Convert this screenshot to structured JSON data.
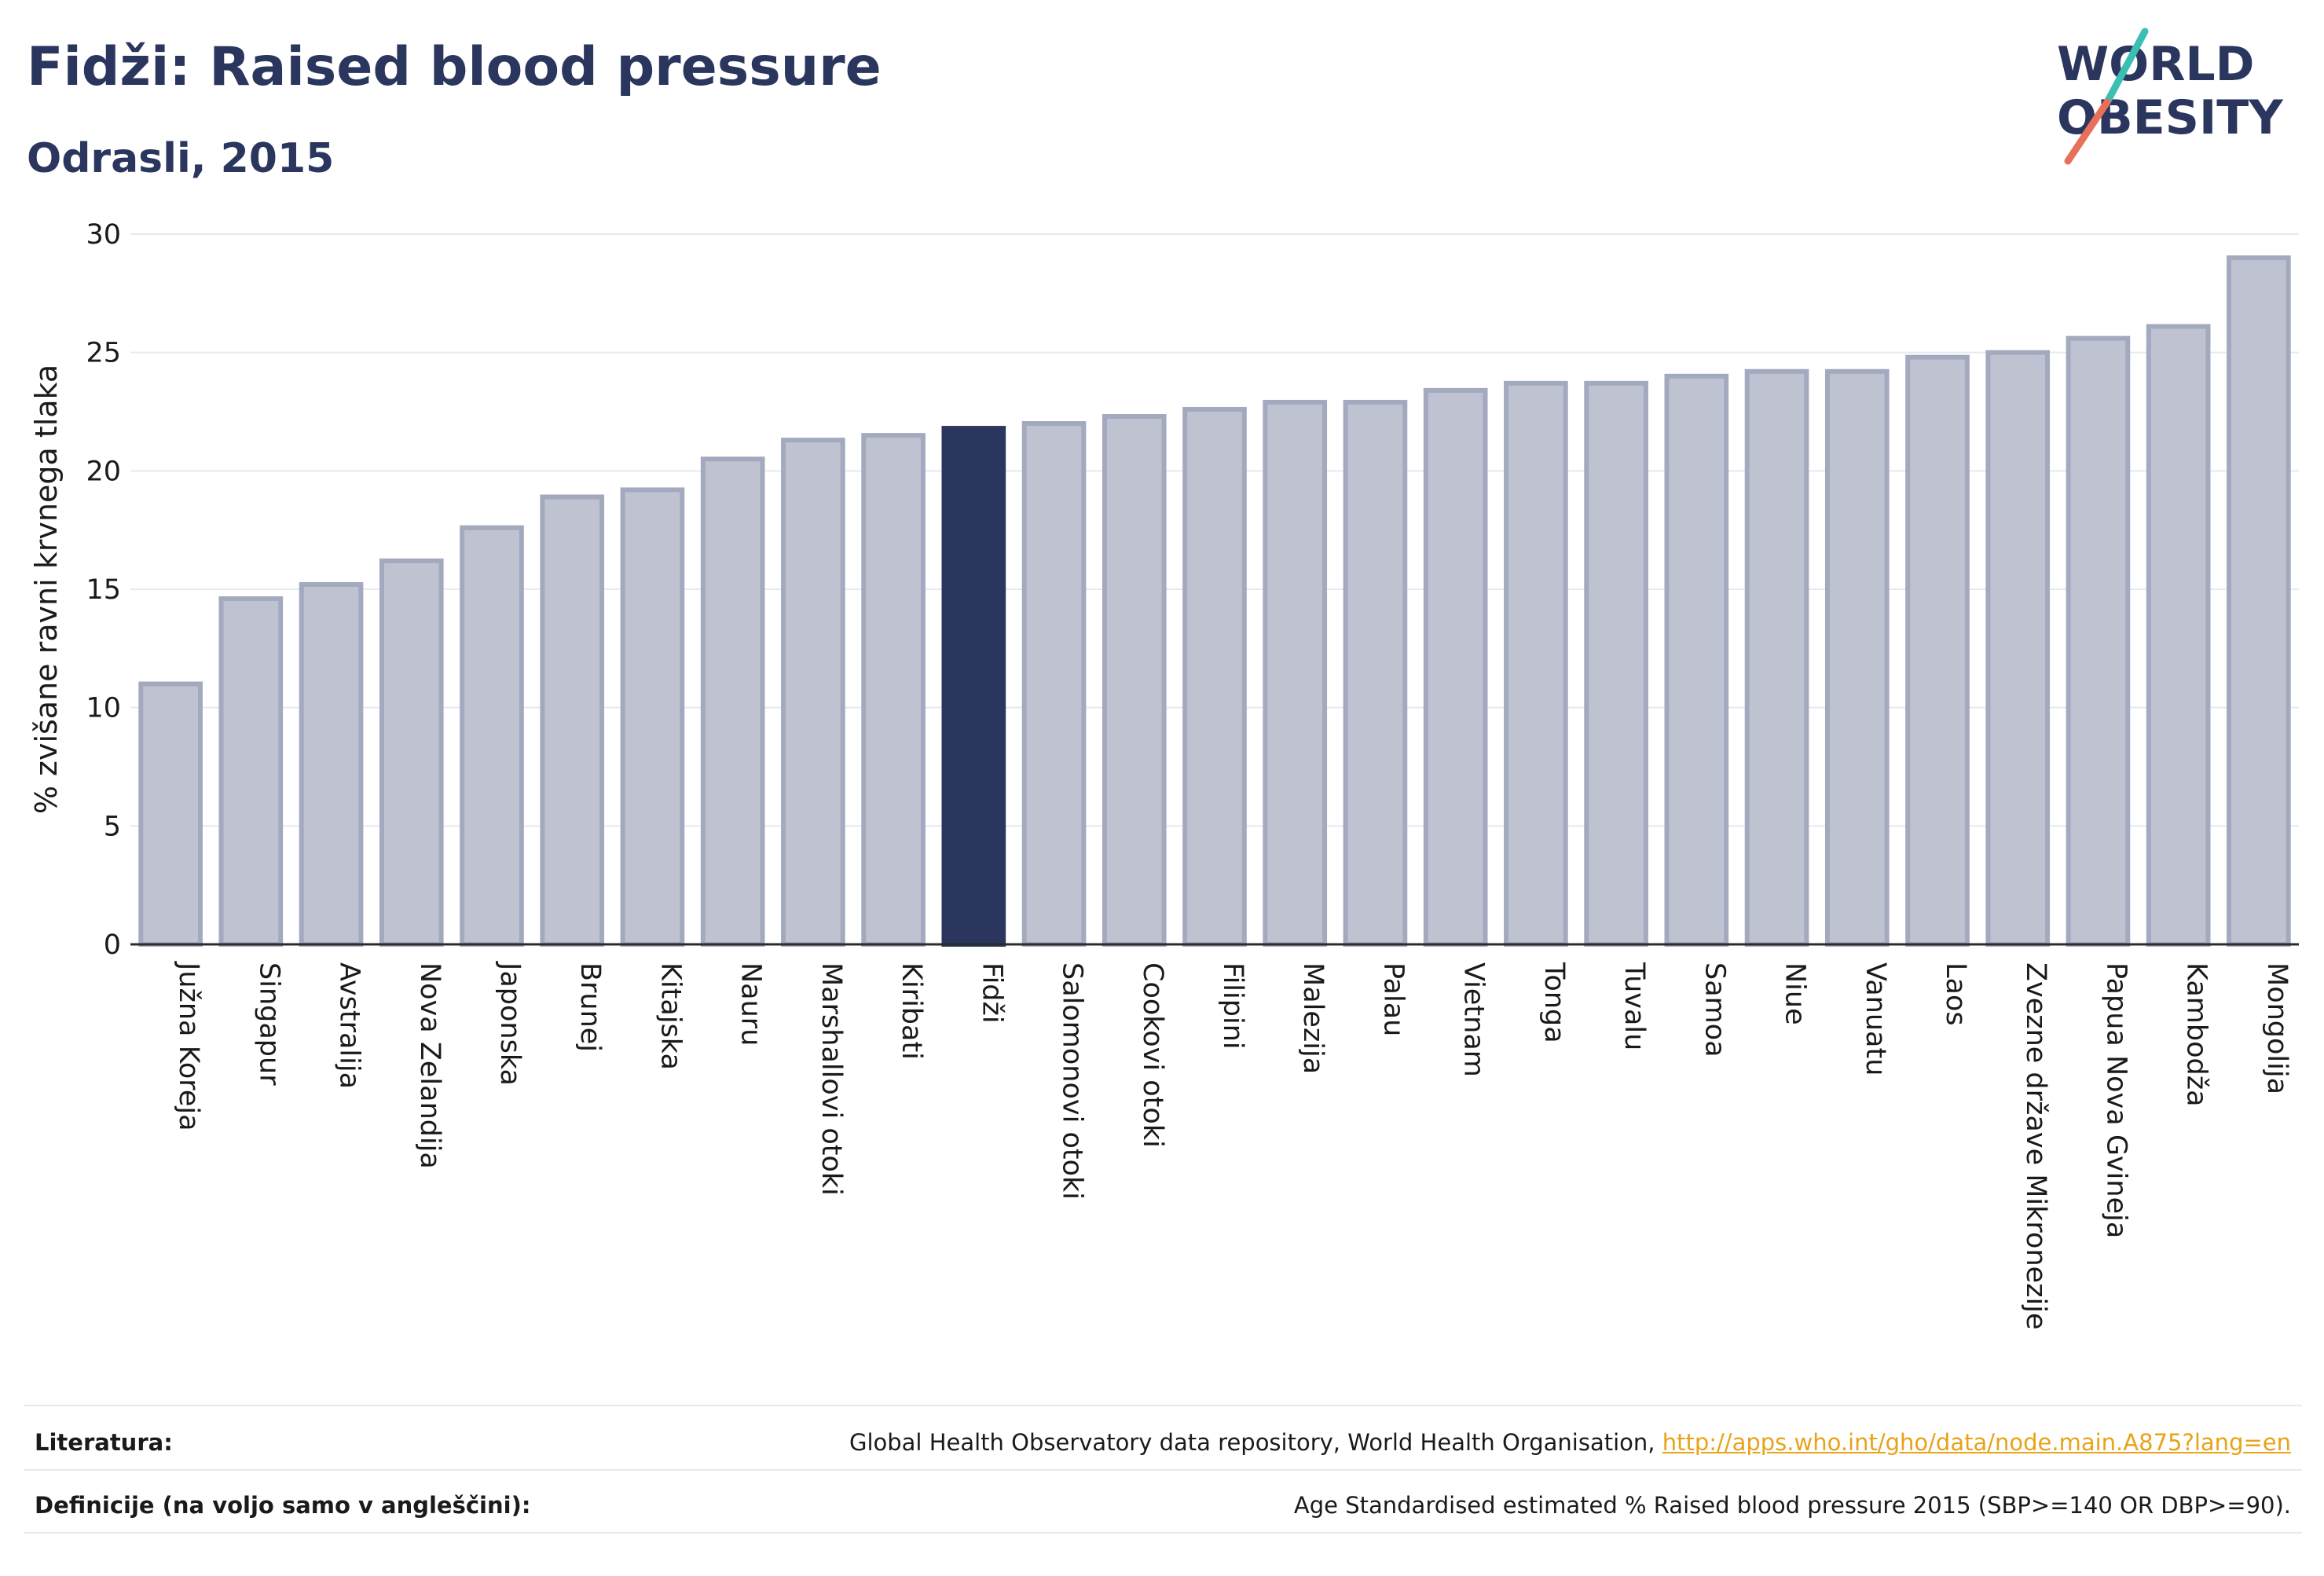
{
  "header": {
    "title": "Fidži: Raised blood pressure",
    "subtitle": "Odrasli, 2015"
  },
  "logo": {
    "line1": "WORLD",
    "line2": "OBESITY"
  },
  "colors": {
    "bar_fill": "#bfc3d1",
    "bar_stroke": "#a3a9be",
    "highlight": "#2b365e",
    "grid": "#e6e9f0",
    "link": "#e8a317",
    "logo_teal": "#3bbfb3",
    "logo_coral": "#e8705a"
  },
  "chart_data": {
    "type": "bar",
    "ylabel": "% zvišane ravni krvnega tlaka",
    "ylim": [
      0,
      30
    ],
    "yticks": [
      0,
      5,
      10,
      15,
      20,
      25,
      30
    ],
    "grid": true,
    "highlight": "Fidži",
    "categories": [
      "Južna Koreja",
      "Singapur",
      "Avstralija",
      "Nova Zelandija",
      "Japonska",
      "Brunej",
      "Kitajska",
      "Nauru",
      "Marshallovi otoki",
      "Kiribati",
      "Fidži",
      "Salomonovi otoki",
      "Cookovi otoki",
      "Filipini",
      "Malezija",
      "Palau",
      "Vietnam",
      "Tonga",
      "Tuvalu",
      "Samoa",
      "Niue",
      "Vanuatu",
      "Laos",
      "Zvezne države Mikronezije",
      "Papua Nova Gvineja",
      "Kambodža",
      "Mongolija"
    ],
    "values": [
      11.0,
      14.6,
      15.2,
      16.2,
      17.6,
      18.9,
      19.2,
      20.5,
      21.3,
      21.5,
      21.8,
      22.0,
      22.3,
      22.6,
      22.9,
      22.9,
      23.4,
      23.7,
      23.7,
      24.0,
      24.2,
      24.2,
      24.8,
      25.0,
      25.6,
      26.1,
      29.0
    ]
  },
  "footer": {
    "sources_label": "Literatura:",
    "sources_text": "Global Health Observatory data repository, World Health Organisation,",
    "sources_link": "http://apps.who.int/gho/data/node.main.A875?lang=en",
    "definitions_label": "Definicije (na voljo samo v angleščini):",
    "definitions_text": "Age Standardised estimated % Raised blood pressure 2015 (SBP>=140 OR DBP>=90)."
  }
}
